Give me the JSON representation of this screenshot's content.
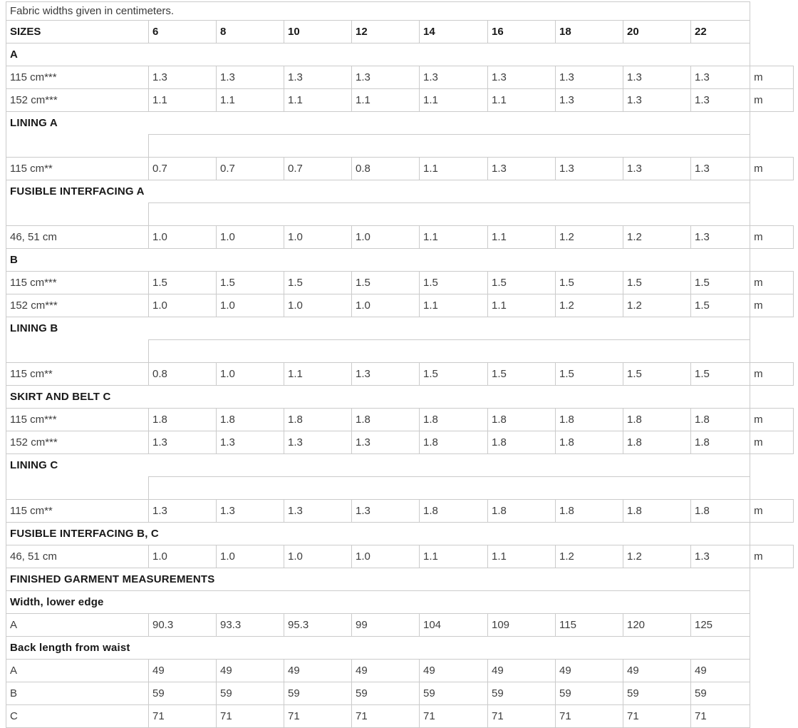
{
  "caption": "Fabric widths given in centimeters.",
  "table": {
    "header": {
      "label": "SIZES",
      "sizes": [
        "6",
        "8",
        "10",
        "12",
        "14",
        "16",
        "18",
        "20",
        "22"
      ]
    },
    "unit_symbol": "m",
    "rows": [
      {
        "type": "section",
        "label": "A"
      },
      {
        "type": "data",
        "label": "115 cm***",
        "values": [
          "1.3",
          "1.3",
          "1.3",
          "1.3",
          "1.3",
          "1.3",
          "1.3",
          "1.3",
          "1.3"
        ],
        "unit": "m"
      },
      {
        "type": "data",
        "label": "152 cm***",
        "values": [
          "1.1",
          "1.1",
          "1.1",
          "1.1",
          "1.1",
          "1.1",
          "1.3",
          "1.3",
          "1.3"
        ],
        "unit": "m"
      },
      {
        "type": "section_open",
        "label": "LINING A"
      },
      {
        "type": "spacer"
      },
      {
        "type": "data",
        "label": "115 cm**",
        "values": [
          "0.7",
          "0.7",
          "0.7",
          "0.8",
          "1.1",
          "1.3",
          "1.3",
          "1.3",
          "1.3"
        ],
        "unit": "m"
      },
      {
        "type": "section_open",
        "label": "FUSIBLE INTERFACING A"
      },
      {
        "type": "spacer"
      },
      {
        "type": "data",
        "label": "46, 51 cm",
        "values": [
          "1.0",
          "1.0",
          "1.0",
          "1.0",
          "1.1",
          "1.1",
          "1.2",
          "1.2",
          "1.3"
        ],
        "unit": "m"
      },
      {
        "type": "section",
        "label": "B"
      },
      {
        "type": "data",
        "label": "115 cm***",
        "values": [
          "1.5",
          "1.5",
          "1.5",
          "1.5",
          "1.5",
          "1.5",
          "1.5",
          "1.5",
          "1.5"
        ],
        "unit": "m"
      },
      {
        "type": "data",
        "label": "152 cm***",
        "values": [
          "1.0",
          "1.0",
          "1.0",
          "1.0",
          "1.1",
          "1.1",
          "1.2",
          "1.2",
          "1.5"
        ],
        "unit": "m"
      },
      {
        "type": "section_open",
        "label": "LINING B"
      },
      {
        "type": "spacer"
      },
      {
        "type": "data",
        "label": "115 cm**",
        "values": [
          "0.8",
          "1.0",
          "1.1",
          "1.3",
          "1.5",
          "1.5",
          "1.5",
          "1.5",
          "1.5"
        ],
        "unit": "m"
      },
      {
        "type": "section",
        "label": "SKIRT AND BELT C"
      },
      {
        "type": "data",
        "label": "115 cm***",
        "values": [
          "1.8",
          "1.8",
          "1.8",
          "1.8",
          "1.8",
          "1.8",
          "1.8",
          "1.8",
          "1.8"
        ],
        "unit": "m"
      },
      {
        "type": "data",
        "label": "152 cm***",
        "values": [
          "1.3",
          "1.3",
          "1.3",
          "1.3",
          "1.8",
          "1.8",
          "1.8",
          "1.8",
          "1.8"
        ],
        "unit": "m"
      },
      {
        "type": "section_open",
        "label": "LINING C"
      },
      {
        "type": "spacer"
      },
      {
        "type": "data",
        "label": "115 cm**",
        "values": [
          "1.3",
          "1.3",
          "1.3",
          "1.3",
          "1.8",
          "1.8",
          "1.8",
          "1.8",
          "1.8"
        ],
        "unit": "m"
      },
      {
        "type": "section",
        "label": "FUSIBLE INTERFACING B, C"
      },
      {
        "type": "data",
        "label": "46, 51 cm",
        "values": [
          "1.0",
          "1.0",
          "1.0",
          "1.0",
          "1.1",
          "1.1",
          "1.2",
          "1.2",
          "1.3"
        ],
        "unit": "m"
      },
      {
        "type": "section",
        "label": "FINISHED GARMENT MEASUREMENTS"
      },
      {
        "type": "section",
        "label": "Width, lower edge"
      },
      {
        "type": "data",
        "label": "A",
        "values": [
          "90.3",
          "93.3",
          "95.3",
          "99",
          "104",
          "109",
          "115",
          "120",
          "125"
        ],
        "unit": ""
      },
      {
        "type": "section",
        "label": "Back length from waist"
      },
      {
        "type": "data",
        "label": "A",
        "values": [
          "49",
          "49",
          "49",
          "49",
          "49",
          "49",
          "49",
          "49",
          "49"
        ],
        "unit": ""
      },
      {
        "type": "data",
        "label": "B",
        "values": [
          "59",
          "59",
          "59",
          "59",
          "59",
          "59",
          "59",
          "59",
          "59"
        ],
        "unit": ""
      },
      {
        "type": "data",
        "label": "C",
        "values": [
          "71",
          "71",
          "71",
          "71",
          "71",
          "71",
          "71",
          "71",
          "71"
        ],
        "unit": ""
      }
    ]
  }
}
